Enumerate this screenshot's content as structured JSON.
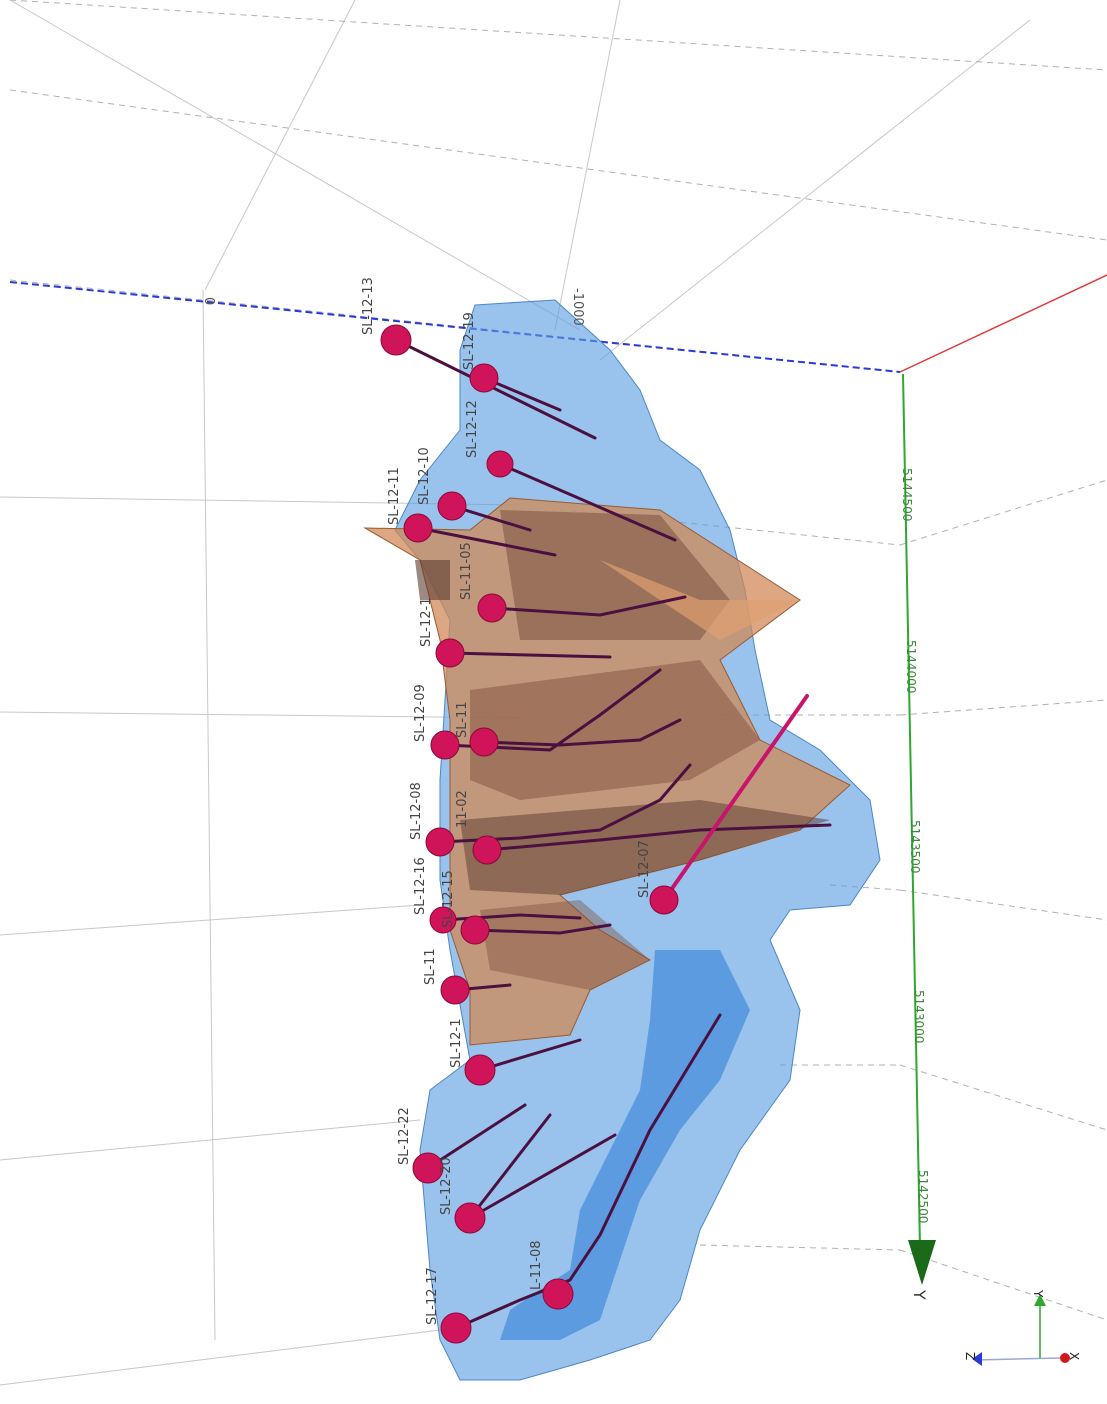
{
  "colors": {
    "background": "#ffffff",
    "envelope": "#5a9ee0",
    "inner_zone": "#2a7ad6",
    "solid": "#d08a58",
    "collar": "#d0145a",
    "trace": "#4b1040",
    "axis_z": "#2a3ad6",
    "axis_x": "#e03a3a",
    "axis_y": "#2ea82e"
  },
  "grid_labels": {
    "top_zero": "0",
    "top_1000": "-1000"
  },
  "y_axis": {
    "title": "Y",
    "ticks": [
      "5144500",
      "5144000",
      "5143500",
      "5143000",
      "5142500"
    ]
  },
  "drillholes": [
    "SL-12-13",
    "SL-12-19",
    "SL-12-12",
    "SL-12-10",
    "SL-12-11",
    "SL-11-05",
    "SL-12-1",
    "SL-11",
    "SL-12-09",
    "SL-12-08",
    "11-02",
    "SL-12-16",
    "SL-12-15",
    "SL-11",
    "SL-12-1",
    "SL-12-22",
    "SL-12-20",
    "SL-12-17",
    "L-11-08",
    "SL-12-07"
  ],
  "orientation": {
    "x_label": "X",
    "y_label": "Y",
    "z_label": "Z"
  }
}
